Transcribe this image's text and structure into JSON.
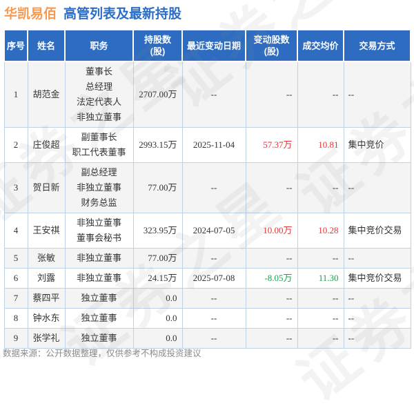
{
  "page": {
    "title_company": "华凯易佰",
    "title_rest": "高管列表及最新持股",
    "footer": "数据来源：公开数据整理，仅供参考不构成投资建议",
    "watermark": "证券之星"
  },
  "colors": {
    "accent_orange": "#f9994e",
    "accent_blue": "#2b6dc7",
    "header_bg": "#2d6cc0",
    "grid_border": "#bdd2e7",
    "row_alt": "#f4f4f4",
    "up_red": "#e63232",
    "down_green": "#18a44c"
  },
  "chart_data": {
    "type": "table",
    "title": "华凯易佰 高管列表及最新持股",
    "columns": [
      "序号",
      "姓名",
      "职务",
      "持股数\n(股)",
      "最近变动日期",
      "变动股数\n(股)",
      "成交均价",
      "交易方式"
    ],
    "rows": [
      {
        "no": "1",
        "name": "胡范金",
        "position": "董事长\n总经理\n法定代表人\n非独立董事",
        "shares": "2707.00万",
        "date": "--",
        "change": "--",
        "price": "--",
        "method": "--"
      },
      {
        "no": "2",
        "name": "庄俊超",
        "position": "副董事长\n职工代表董事",
        "shares": "2993.15万",
        "date": "2025-11-04",
        "change": "57.37万",
        "price": "10.81",
        "method": "集中竞价",
        "trend": "up"
      },
      {
        "no": "3",
        "name": "贺日新",
        "position": "副总经理\n非独立董事\n财务总监",
        "shares": "77.00万",
        "date": "--",
        "change": "--",
        "price": "--",
        "method": "--"
      },
      {
        "no": "4",
        "name": "王安祺",
        "position": "非独立董事\n董事会秘书",
        "shares": "323.95万",
        "date": "2024-07-05",
        "change": "10.00万",
        "price": "10.28",
        "method": "集中竞价交易",
        "trend": "up"
      },
      {
        "no": "5",
        "name": "张敏",
        "position": "非独立董事",
        "shares": "77.00万",
        "date": "--",
        "change": "--",
        "price": "--",
        "method": "--"
      },
      {
        "no": "6",
        "name": "刘露",
        "position": "非独立董事",
        "shares": "24.15万",
        "date": "2025-07-08",
        "change": "-8.05万",
        "price": "11.30",
        "method": "集中竞价交易",
        "trend": "down"
      },
      {
        "no": "7",
        "name": "蔡四平",
        "position": "独立董事",
        "shares": "0.0",
        "date": "--",
        "change": "--",
        "price": "--",
        "method": "--"
      },
      {
        "no": "8",
        "name": "钟水东",
        "position": "独立董事",
        "shares": "0.0",
        "date": "--",
        "change": "--",
        "price": "--",
        "method": "--"
      },
      {
        "no": "9",
        "name": "张学礼",
        "position": "独立董事",
        "shares": "0.0",
        "date": "--",
        "change": "--",
        "price": "--",
        "method": "--"
      }
    ]
  }
}
